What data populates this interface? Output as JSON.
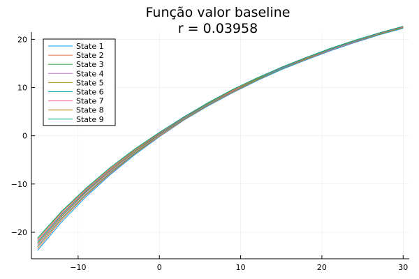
{
  "chart_data": {
    "type": "line",
    "title": "Função valor baseline",
    "subtitle": "r = 0.03958",
    "xlabel": "",
    "ylabel": "",
    "xlim": [
      -15.75,
      30.75
    ],
    "ylim": [
      -25.5,
      21.5
    ],
    "x_ticks": [
      -10,
      0,
      10,
      20,
      30
    ],
    "y_ticks": [
      -20,
      -10,
      0,
      10,
      20
    ],
    "grid": true,
    "legend_position": "top-left",
    "x": [
      -15,
      -12,
      -9,
      -6,
      -3,
      0,
      3,
      6,
      9,
      12,
      15,
      18,
      21,
      24,
      27,
      30
    ],
    "series": [
      {
        "name": "State 1",
        "color": "#009AFA",
        "values": [
          -23.8,
          -17.8,
          -12.6,
          -8.0,
          -3.9,
          -0.2,
          3.2,
          6.2,
          8.9,
          11.4,
          13.7,
          15.7,
          17.6,
          19.3,
          20.9,
          22.3
        ]
      },
      {
        "name": "State 2",
        "color": "#E36F47",
        "values": [
          -23.4,
          -17.4,
          -12.3,
          -7.8,
          -3.7,
          -0.1,
          3.3,
          6.3,
          9.0,
          11.5,
          13.8,
          15.8,
          17.7,
          19.4,
          21.0,
          22.4
        ]
      },
      {
        "name": "State 3",
        "color": "#3EA44E",
        "values": [
          -23.0,
          -17.1,
          -12.1,
          -7.6,
          -3.6,
          0.1,
          3.4,
          6.4,
          9.1,
          11.6,
          13.8,
          15.9,
          17.8,
          19.5,
          21.0,
          22.4
        ]
      },
      {
        "name": "State 4",
        "color": "#C371D2",
        "values": [
          -22.7,
          -16.8,
          -11.8,
          -7.4,
          -3.4,
          0.2,
          3.5,
          6.5,
          9.2,
          11.7,
          13.9,
          16.0,
          17.8,
          19.5,
          21.1,
          22.5
        ]
      },
      {
        "name": "State 5",
        "color": "#AC8D18",
        "values": [
          -22.4,
          -16.6,
          -11.6,
          -7.2,
          -3.3,
          0.3,
          3.6,
          6.6,
          9.3,
          11.7,
          14.0,
          16.0,
          17.9,
          19.6,
          21.1,
          22.5
        ]
      },
      {
        "name": "State 6",
        "color": "#00A9AD",
        "values": [
          -22.1,
          -16.3,
          -11.4,
          -7.0,
          -3.1,
          0.4,
          3.7,
          6.7,
          9.4,
          11.8,
          14.0,
          16.1,
          17.9,
          19.6,
          21.2,
          22.6
        ]
      },
      {
        "name": "State 7",
        "color": "#ED5E93",
        "values": [
          -21.8,
          -16.1,
          -11.2,
          -6.9,
          -3.0,
          0.5,
          3.8,
          6.8,
          9.4,
          11.9,
          14.1,
          16.1,
          18.0,
          19.7,
          21.2,
          22.6
        ]
      },
      {
        "name": "State 8",
        "color": "#C68125",
        "values": [
          -21.5,
          -15.8,
          -11.0,
          -6.7,
          -2.9,
          0.6,
          3.9,
          6.8,
          9.5,
          11.9,
          14.2,
          16.2,
          18.0,
          19.7,
          21.3,
          22.7
        ]
      },
      {
        "name": "State 9",
        "color": "#00A98D",
        "values": [
          -21.2,
          -15.6,
          -10.8,
          -6.5,
          -2.7,
          0.7,
          3.9,
          6.9,
          9.6,
          12.0,
          14.2,
          16.2,
          18.1,
          19.8,
          21.3,
          22.7
        ]
      }
    ]
  }
}
